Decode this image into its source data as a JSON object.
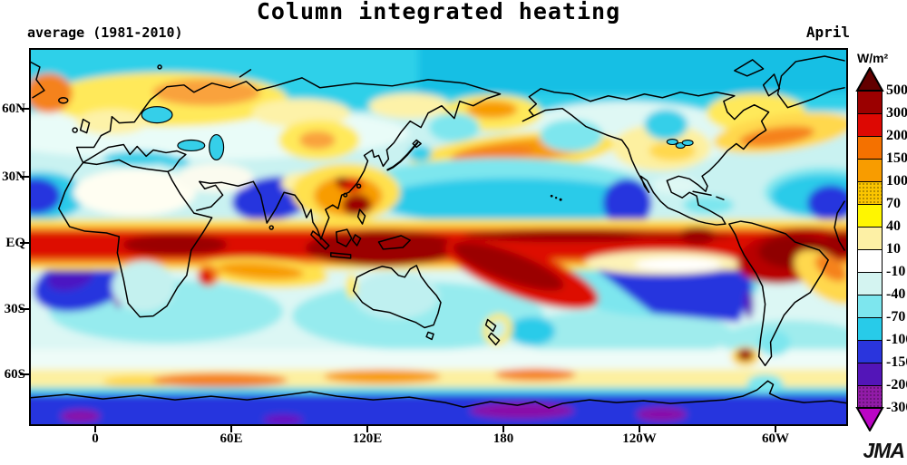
{
  "header": {
    "title": "Column integrated heating",
    "subtitle_left": "average (1981-2010)",
    "subtitle_right": "April"
  },
  "branding": {
    "logo": "JMA"
  },
  "axes": {
    "x": [
      "0",
      "60E",
      "120E",
      "180",
      "120W",
      "60W"
    ],
    "y": [
      "60N",
      "30N",
      "EQ",
      "30S",
      "60S"
    ]
  },
  "chart_data": {
    "type": "heatmap",
    "title": "Column integrated heating",
    "period": "average (1981-2010)",
    "month": "April",
    "units": "W/m²",
    "projection": "global latitude-longitude map, ~30W eastward around globe, 87N-83S",
    "x_ticks": [
      "0",
      "60E",
      "120E",
      "180",
      "120W",
      "60W"
    ],
    "y_ticks": [
      "60N",
      "30N",
      "EQ",
      "30S",
      "60S"
    ],
    "legend": {
      "units_label": "W/m²",
      "levels": [
        "500",
        "300",
        "200",
        "150",
        "100",
        "70",
        "40",
        "10",
        "-10",
        "-40",
        "-70",
        "-100",
        "-150",
        "-200",
        "-300"
      ],
      "band_colors_top_to_bottom": [
        "#9b0000",
        "#dd0803",
        "#f47100",
        "#f89c00",
        "#fbc500",
        "#fff600",
        "#fdf0a5",
        "#ffffff",
        "#d4f4f1",
        "#7de6ee",
        "#28cbe9",
        "#2a35dd",
        "#5315b8",
        "#921ba8"
      ],
      "stippled_band_indexes": [
        4,
        13
      ],
      "above_max_color": "#630000",
      "below_min_color": "#bb05c5",
      "position": "right"
    },
    "notable_features": [
      "Strong positive heating (>200 W/m²) band along ITCZ: equatorial Africa, Maritime Continent, west-central Pacific, SPCZ, Amazon",
      "Strong negative heating (-100 to -200 W/m²) over subtropical eastern oceans: SE Pacific off Chile, South Atlantic off Namibia, Arabian Sea, east Pacific off Baja",
      "Orange storm-track heating bands over NW Pacific and NW Atlantic mid-latitudes",
      "Yellow/orange band near 60S fringing Antarctica; strong cooling (blue/purple) over Antarctica and Arctic cyan band"
    ]
  }
}
